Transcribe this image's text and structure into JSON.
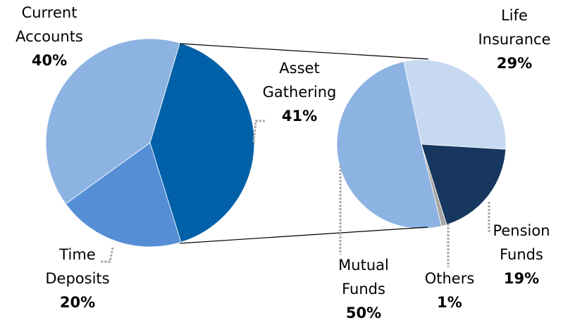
{
  "chart_data": [
    {
      "type": "pie",
      "categories": [
        "Asset Gathering",
        "Time Deposits",
        "Current Accounts"
      ],
      "values": [
        41,
        20,
        40
      ],
      "value_labels": [
        "41%",
        "20%",
        "40%"
      ],
      "colors": [
        "#0060a8",
        "#558ed5",
        "#8db3e2"
      ]
    },
    {
      "type": "pie",
      "categories": [
        "Life Insurance",
        "Pension Funds",
        "Others",
        "Mutual Funds"
      ],
      "values": [
        29,
        19,
        1,
        50
      ],
      "value_labels": [
        "29%",
        "19%",
        "1%",
        "50%"
      ],
      "colors": [
        "#c6d9f1",
        "#17375e",
        "#a6a6a6",
        "#8db3e2"
      ]
    }
  ]
}
